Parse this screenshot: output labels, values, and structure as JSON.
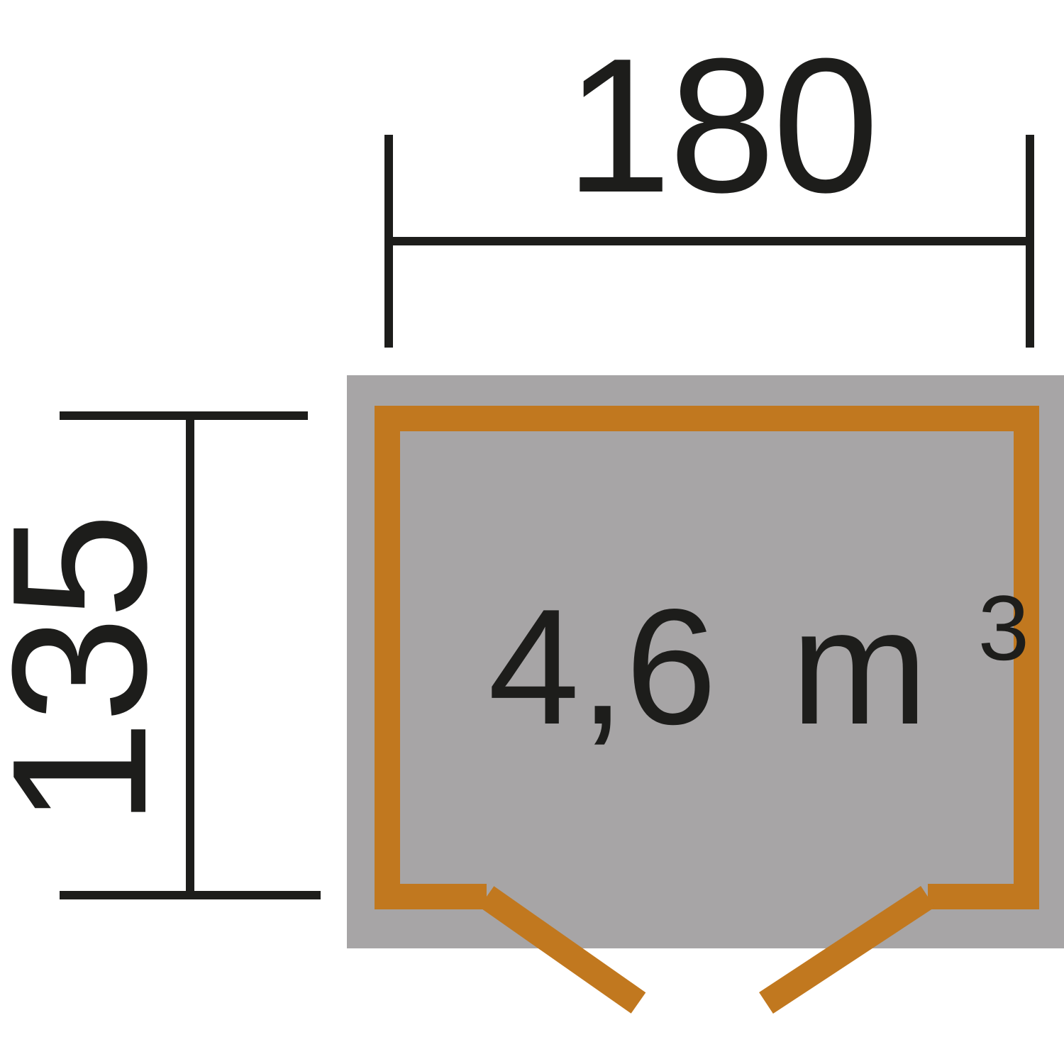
{
  "dimensions": {
    "width_label": "180",
    "depth_label": "135"
  },
  "volume": {
    "value": "4,6",
    "unit": "m",
    "exponent": "3"
  },
  "colors": {
    "ink": "#1d1d1b",
    "floor": "#a7a5a6",
    "wall": "#c1781f",
    "background": "#ffffff"
  }
}
